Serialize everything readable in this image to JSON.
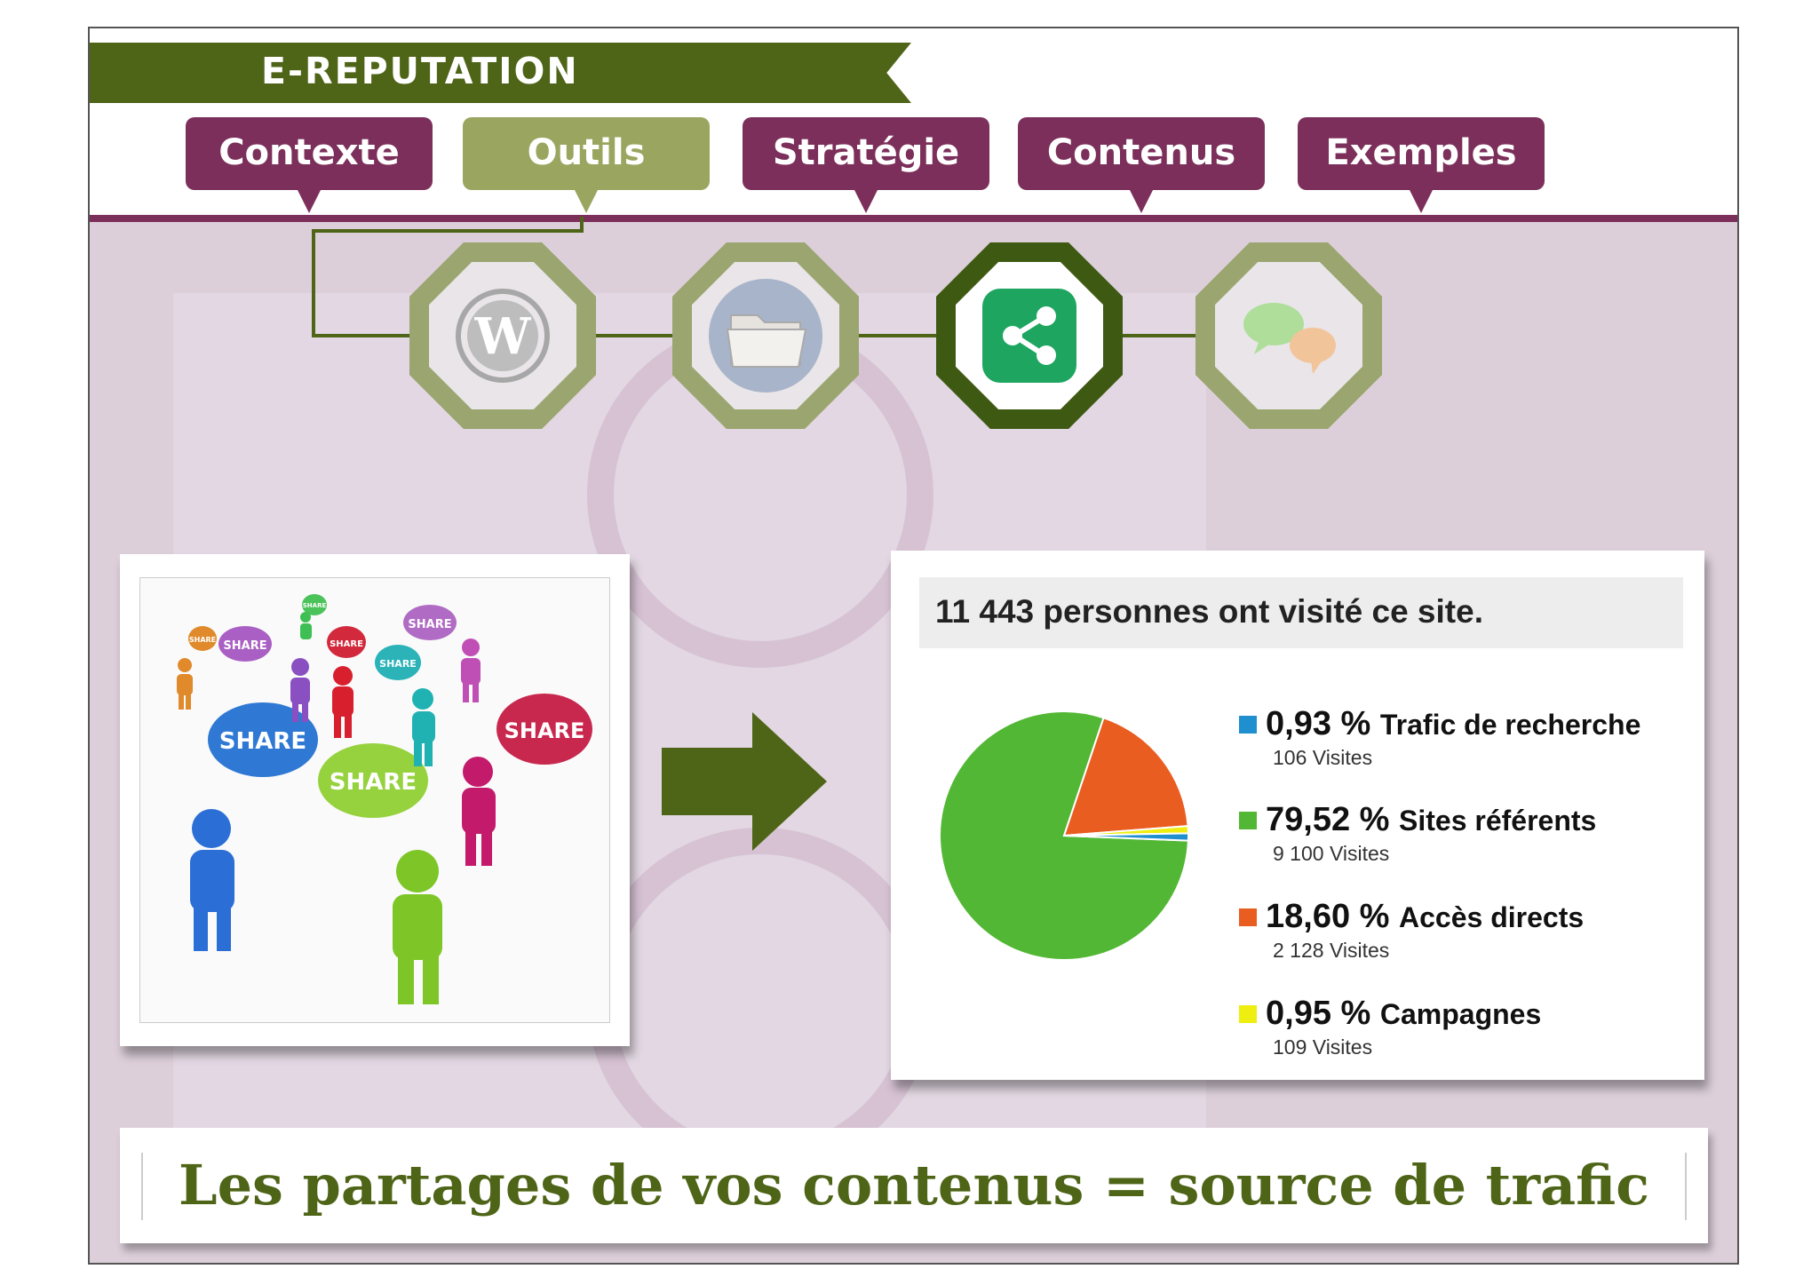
{
  "header": {
    "banner_title": "E-REPUTATION"
  },
  "tabs": [
    {
      "label": "Contexte",
      "active": false
    },
    {
      "label": "Outils",
      "active": true
    },
    {
      "label": "Stratégie",
      "active": false
    },
    {
      "label": "Contenus",
      "active": false
    },
    {
      "label": "Exemples",
      "active": false
    }
  ],
  "tools": [
    {
      "icon": "wordpress-icon",
      "active": false
    },
    {
      "icon": "folder-icon",
      "active": false
    },
    {
      "icon": "share-icon",
      "active": true
    },
    {
      "icon": "chat-bubbles-icon",
      "active": false
    }
  ],
  "photo": {
    "bubble_text": "SHARE"
  },
  "stats_card": {
    "headline": "11 443 personnes ont visité ce site."
  },
  "chart_data": {
    "type": "pie",
    "slices": [
      {
        "label": "Trafic de recherche",
        "percent": 0.93,
        "visits_label": "106 Visites",
        "color": "#1f8fd0"
      },
      {
        "label": "Sites référents",
        "percent": 79.52,
        "visits_label": "9 100 Visites",
        "color": "#52b734"
      },
      {
        "label": "Accès directs",
        "percent": 18.6,
        "visits_label": "2 128 Visites",
        "color": "#e95d20"
      },
      {
        "label": "Campagnes",
        "percent": 0.95,
        "visits_label": "109 Visites",
        "color": "#eeee10"
      }
    ],
    "legend": [
      {
        "value": "0,93 %",
        "label": "Trafic de recherche",
        "sub": "106 Visites"
      },
      {
        "value": "79,52 %",
        "label": "Sites référents",
        "sub": "9 100 Visites"
      },
      {
        "value": "18,60 %",
        "label": "Accès directs",
        "sub": "2 128 Visites"
      },
      {
        "value": "0,95 %",
        "label": "Campagnes",
        "sub": "109 Visites"
      }
    ]
  },
  "footer": {
    "caption": "Les partages de vos contenus = source de trafic"
  },
  "colors": {
    "purple": "#7b2f5a",
    "olive": "#4e6417",
    "olive_light": "#9aa660",
    "band": "#dccfda"
  }
}
